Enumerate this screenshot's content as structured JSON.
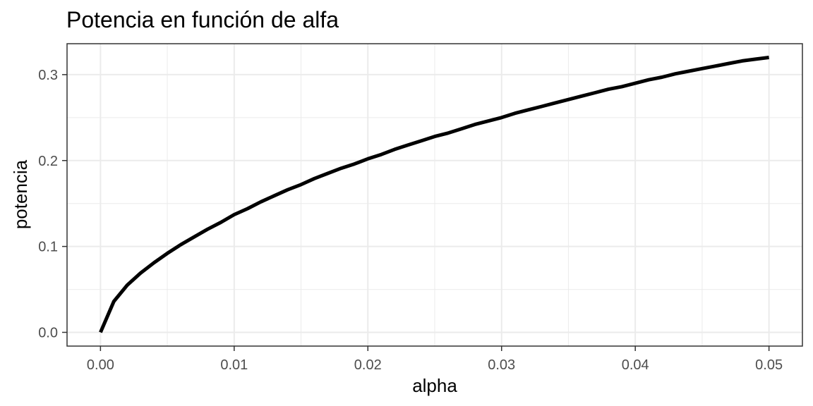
{
  "chart_data": {
    "type": "line",
    "title": "Potencia en función de alfa",
    "xlabel": "alpha",
    "ylabel": "potencia",
    "xlim": [
      -0.0025,
      0.0525
    ],
    "ylim": [
      -0.016,
      0.336
    ],
    "x_ticks": [
      0.0,
      0.01,
      0.02,
      0.03,
      0.04,
      0.05
    ],
    "x_tick_labels": [
      "0.00",
      "0.01",
      "0.02",
      "0.03",
      "0.04",
      "0.05"
    ],
    "y_ticks": [
      0.0,
      0.1,
      0.2,
      0.3
    ],
    "y_tick_labels": [
      "0.0",
      "0.1",
      "0.2",
      "0.3"
    ],
    "grid": true,
    "line_color": "#000000",
    "series": [
      {
        "x": [
          0.0,
          0.001,
          0.002,
          0.003,
          0.004,
          0.005,
          0.006,
          0.007,
          0.008,
          0.009,
          0.01,
          0.011,
          0.012,
          0.013,
          0.014,
          0.015,
          0.016,
          0.017,
          0.018,
          0.019,
          0.02,
          0.021,
          0.022,
          0.023,
          0.024,
          0.025,
          0.026,
          0.027,
          0.028,
          0.029,
          0.03,
          0.031,
          0.032,
          0.033,
          0.034,
          0.035,
          0.036,
          0.037,
          0.038,
          0.039,
          0.04,
          0.041,
          0.042,
          0.043,
          0.044,
          0.045,
          0.046,
          0.047,
          0.048,
          0.049,
          0.05
        ],
        "y": [
          0.0,
          0.036,
          0.055,
          0.069,
          0.081,
          0.092,
          0.102,
          0.111,
          0.12,
          0.128,
          0.137,
          0.144,
          0.152,
          0.159,
          0.166,
          0.172,
          0.179,
          0.185,
          0.191,
          0.196,
          0.202,
          0.207,
          0.213,
          0.218,
          0.223,
          0.228,
          0.232,
          0.237,
          0.242,
          0.246,
          0.25,
          0.255,
          0.259,
          0.263,
          0.267,
          0.271,
          0.275,
          0.279,
          0.283,
          0.286,
          0.29,
          0.294,
          0.297,
          0.301,
          0.304,
          0.307,
          0.31,
          0.313,
          0.316,
          0.318,
          0.32
        ]
      }
    ]
  }
}
